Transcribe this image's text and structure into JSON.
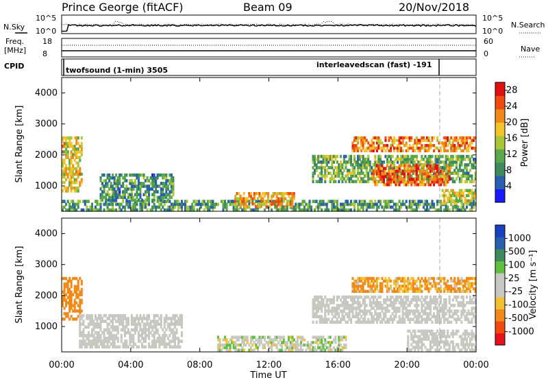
{
  "header": {
    "station": "Prince George (fitACF)",
    "beam": "Beam 09",
    "date": "20/Nov/2018"
  },
  "top_panels": {
    "nsky_label": "N.Sky",
    "nsky_ticks": [
      "10^5",
      "10^0"
    ],
    "nsearch_label": "N.Search",
    "nsearch_ticks": [
      "10^5",
      "10^0"
    ],
    "freq_label_1": "Freq.",
    "freq_label_2": "[MHz]",
    "freq_ticks": [
      "18",
      "8"
    ],
    "nave_label": "Nave",
    "nave_ticks": [
      "60",
      "0"
    ],
    "cpid_label": "CPID",
    "cpid_left": "twofsound (1-min) 3505",
    "cpid_right": "interleavedscan (fast) -191"
  },
  "colors": {
    "power_scale": [
      "#1a1aff",
      "#2a5fb0",
      "#3f8a5e",
      "#5aa84a",
      "#a8c83a",
      "#f2c42a",
      "#f08a1a",
      "#f04a10",
      "#e01010"
    ],
    "velocity_scale": [
      "#e8101a",
      "#f04a10",
      "#f08a1a",
      "#f2c030",
      "#c8c8c0",
      "#c8c8c0",
      "#5fc040",
      "#3f8a5e",
      "#2a5fb0",
      "#1a40c0"
    ],
    "ground_scatter": "#c8c8c0"
  },
  "chart_data": [
    {
      "type": "heatmap",
      "title": "",
      "xlabel": "Time UT",
      "ylabel": "Slant Range [km]",
      "xticks": [
        "00:00",
        "04:00",
        "08:00",
        "12:00",
        "16:00",
        "20:00",
        "00:00"
      ],
      "yticks": [
        "1000",
        "2000",
        "3000",
        "4000"
      ],
      "xlim_hours": [
        0,
        24
      ],
      "ylim_km": [
        180,
        4500
      ],
      "colorbar_label": "Power [dB]",
      "colorbar_ticks": [
        "4",
        "8",
        "12",
        "16",
        "20",
        "24",
        "28"
      ],
      "colorbar_range": [
        0,
        30
      ],
      "regions": [
        {
          "t0": 0.0,
          "t1": 1.2,
          "r0": 800,
          "r1": 2600,
          "value": 18
        },
        {
          "t0": 0.0,
          "t1": 24.0,
          "r0": 180,
          "r1": 550,
          "value": 10
        },
        {
          "t0": 2.2,
          "t1": 6.5,
          "r0": 500,
          "r1": 1400,
          "value": 9
        },
        {
          "t0": 10.0,
          "t1": 13.5,
          "r0": 300,
          "r1": 800,
          "value": 20
        },
        {
          "t0": 14.5,
          "t1": 24.0,
          "r0": 1100,
          "r1": 2000,
          "value": 12
        },
        {
          "t0": 16.8,
          "t1": 24.0,
          "r0": 2100,
          "r1": 2600,
          "value": 22
        },
        {
          "t0": 18.0,
          "t1": 22.5,
          "r0": 1000,
          "r1": 1700,
          "value": 24
        },
        {
          "t0": 22.0,
          "t1": 24.0,
          "r0": 400,
          "r1": 900,
          "value": 16
        }
      ]
    },
    {
      "type": "heatmap",
      "title": "",
      "xlabel": "Time UT",
      "ylabel": "Slant Range [km]",
      "xticks": [
        "00:00",
        "04:00",
        "08:00",
        "12:00",
        "16:00",
        "20:00",
        "00:00"
      ],
      "yticks": [
        "1000",
        "2000",
        "3000",
        "4000"
      ],
      "xlim_hours": [
        0,
        24
      ],
      "ylim_km": [
        180,
        4500
      ],
      "colorbar_label": "Velocity [m s⁻¹]",
      "colorbar_ticks": [
        "1000",
        "500",
        "100",
        "25",
        "-25",
        "-100",
        "-500",
        "-1000"
      ],
      "regions": [
        {
          "t0": 0.0,
          "t1": 1.2,
          "r0": 1200,
          "r1": 2600,
          "value": -300
        },
        {
          "t0": 1.0,
          "t1": 7.0,
          "r0": 300,
          "r1": 1400,
          "value": 0
        },
        {
          "t0": 9.0,
          "t1": 16.5,
          "r0": 200,
          "r1": 700,
          "value": 50
        },
        {
          "t0": 14.5,
          "t1": 24.0,
          "r0": 1100,
          "r1": 2000,
          "value": 0
        },
        {
          "t0": 16.8,
          "t1": 24.0,
          "r0": 2100,
          "r1": 2600,
          "value": -100
        },
        {
          "t0": 20.0,
          "t1": 24.0,
          "r0": 200,
          "r1": 900,
          "value": 0
        }
      ]
    }
  ]
}
